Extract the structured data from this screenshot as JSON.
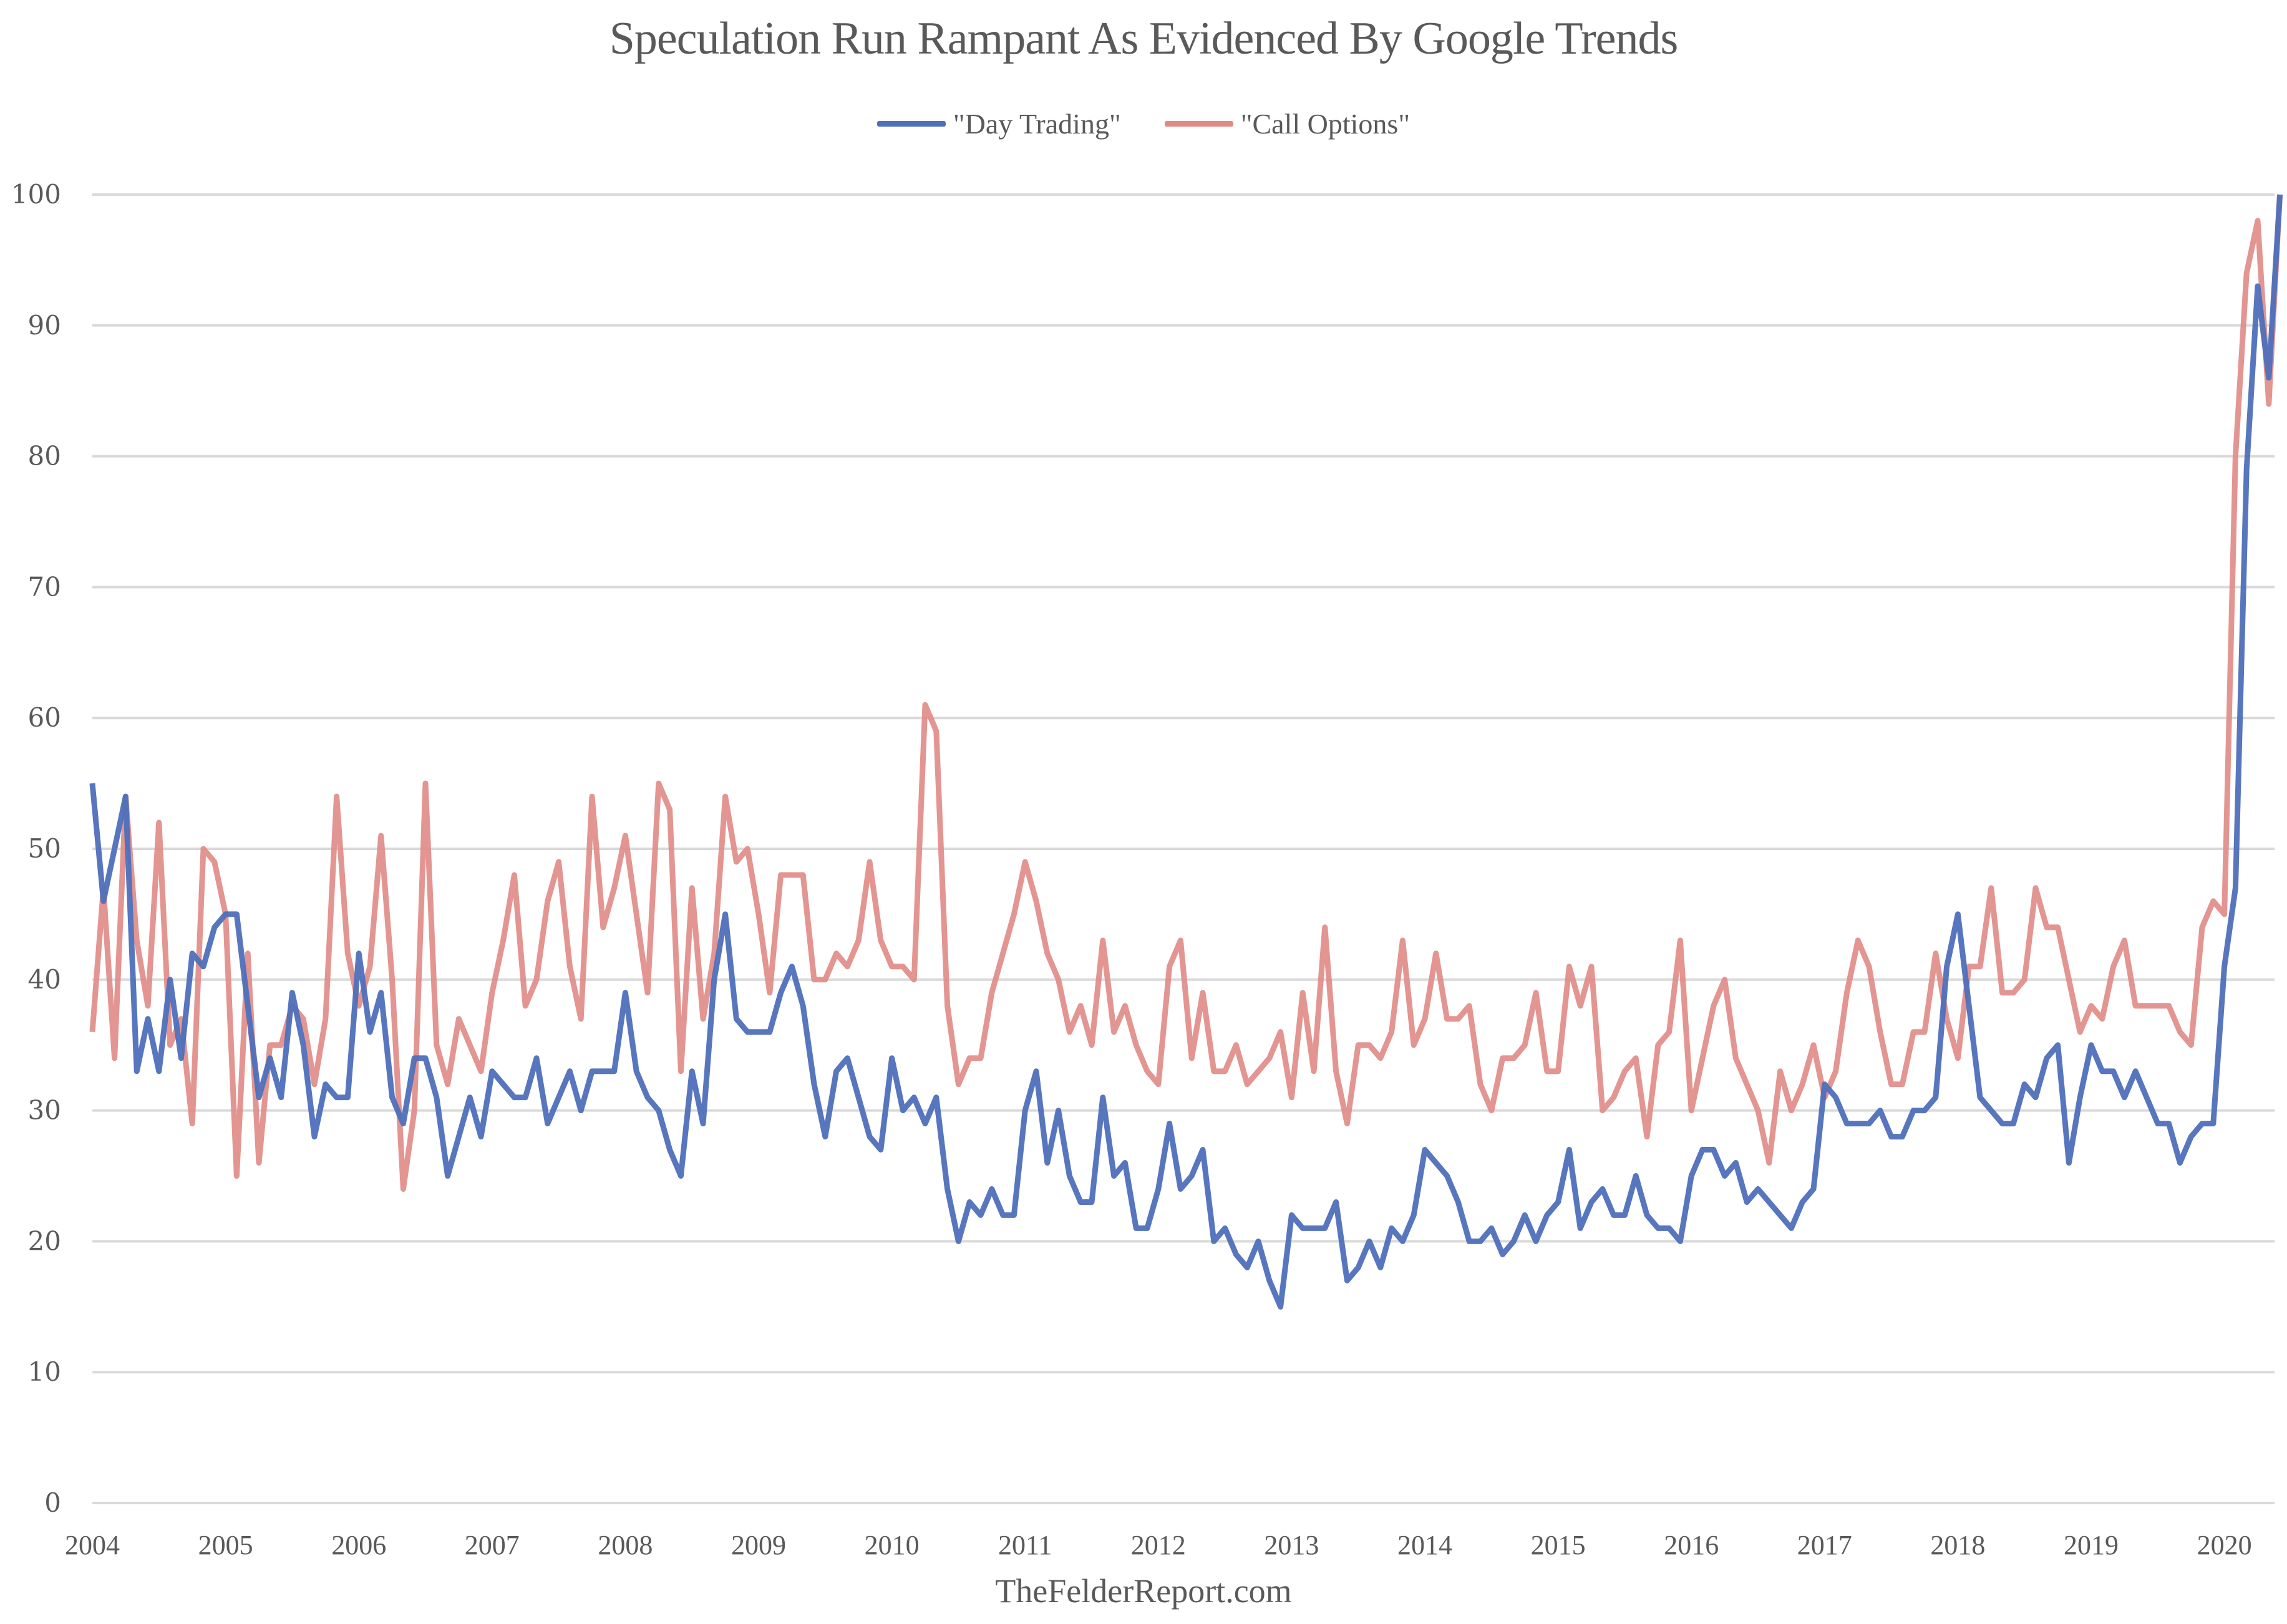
{
  "chart_data": {
    "type": "line",
    "title": "Speculation Run Rampant As Evidenced By Google Trends",
    "xlabel": "",
    "ylabel": "",
    "ylim": [
      0,
      100
    ],
    "yticks": [
      0,
      10,
      20,
      30,
      40,
      50,
      60,
      70,
      80,
      90,
      100
    ],
    "xticks": [
      "2004",
      "2005",
      "2006",
      "2007",
      "2008",
      "2009",
      "2010",
      "2011",
      "2012",
      "2013",
      "2014",
      "2015",
      "2016",
      "2017",
      "2018",
      "2019",
      "2020"
    ],
    "x_start": "2004-01",
    "x_frequency": "monthly",
    "grid": true,
    "legend_position": "top-center",
    "series": [
      {
        "name": "\"Day Trading\"",
        "color": "#4e6fba",
        "values": [
          55,
          46,
          50,
          54,
          33,
          37,
          33,
          40,
          34,
          42,
          41,
          44,
          45,
          45,
          38,
          31,
          34,
          31,
          39,
          35,
          28,
          32,
          31,
          31,
          42,
          36,
          39,
          31,
          29,
          34,
          34,
          31,
          25,
          28,
          31,
          28,
          33,
          32,
          31,
          31,
          34,
          29,
          31,
          33,
          30,
          33,
          33,
          33,
          39,
          33,
          31,
          30,
          27,
          25,
          33,
          29,
          40,
          45,
          37,
          36,
          36,
          36,
          39,
          41,
          38,
          32,
          28,
          33,
          34,
          31,
          28,
          27,
          34,
          30,
          31,
          29,
          31,
          24,
          20,
          23,
          22,
          24,
          22,
          22,
          30,
          33,
          26,
          30,
          25,
          23,
          23,
          31,
          25,
          26,
          21,
          21,
          24,
          29,
          24,
          25,
          27,
          20,
          21,
          19,
          18,
          20,
          17,
          15,
          22,
          21,
          21,
          21,
          23,
          17,
          18,
          20,
          18,
          21,
          20,
          22,
          27,
          26,
          25,
          23,
          20,
          20,
          21,
          19,
          20,
          22,
          20,
          22,
          23,
          27,
          21,
          23,
          24,
          22,
          22,
          25,
          22,
          21,
          21,
          20,
          25,
          27,
          27,
          25,
          26,
          23,
          24,
          23,
          22,
          21,
          23,
          24,
          32,
          31,
          29,
          29,
          29,
          30,
          28,
          28,
          30,
          30,
          31,
          41,
          45,
          38,
          31,
          30,
          29,
          29,
          32,
          31,
          34,
          35,
          26,
          31,
          35,
          33,
          33,
          31,
          33,
          31,
          29,
          29,
          26,
          28,
          29,
          29,
          41,
          47,
          79,
          93,
          86,
          100
        ]
      },
      {
        "name": "\"Call Options\"",
        "color": "#e08a86",
        "values": [
          36,
          47,
          34,
          54,
          43,
          38,
          52,
          35,
          37,
          29,
          50,
          49,
          45,
          25,
          42,
          26,
          35,
          35,
          38,
          37,
          32,
          37,
          54,
          42,
          38,
          41,
          51,
          40,
          24,
          30,
          55,
          35,
          32,
          37,
          35,
          33,
          39,
          43,
          48,
          38,
          40,
          46,
          49,
          41,
          37,
          54,
          44,
          47,
          51,
          45,
          39,
          55,
          53,
          33,
          47,
          37,
          42,
          54,
          49,
          50,
          45,
          39,
          48,
          48,
          48,
          40,
          40,
          42,
          41,
          43,
          49,
          43,
          41,
          41,
          40,
          61,
          59,
          38,
          32,
          34,
          34,
          39,
          42,
          45,
          49,
          46,
          42,
          40,
          36,
          38,
          35,
          43,
          36,
          38,
          35,
          33,
          32,
          41,
          43,
          34,
          39,
          33,
          33,
          35,
          32,
          33,
          34,
          36,
          31,
          39,
          33,
          44,
          33,
          29,
          35,
          35,
          34,
          36,
          43,
          35,
          37,
          42,
          37,
          37,
          38,
          32,
          30,
          34,
          34,
          35,
          39,
          33,
          33,
          41,
          38,
          41,
          30,
          31,
          33,
          34,
          28,
          35,
          36,
          43,
          30,
          34,
          38,
          40,
          34,
          32,
          30,
          26,
          33,
          30,
          32,
          35,
          31,
          33,
          39,
          43,
          41,
          36,
          32,
          32,
          36,
          36,
          42,
          37,
          34,
          41,
          41,
          47,
          39,
          39,
          40,
          47,
          44,
          44,
          40,
          36,
          38,
          37,
          41,
          43,
          38,
          38,
          38,
          38,
          36,
          35,
          44,
          46,
          45,
          80,
          94,
          98,
          84,
          100
        ]
      }
    ]
  },
  "legend": {
    "items": [
      {
        "label": "\"Day Trading\"",
        "color": "#4e6fba"
      },
      {
        "label": "\"Call Options\"",
        "color": "#e08a86"
      }
    ]
  },
  "footer": {
    "source": "TheFelderReport.com"
  }
}
